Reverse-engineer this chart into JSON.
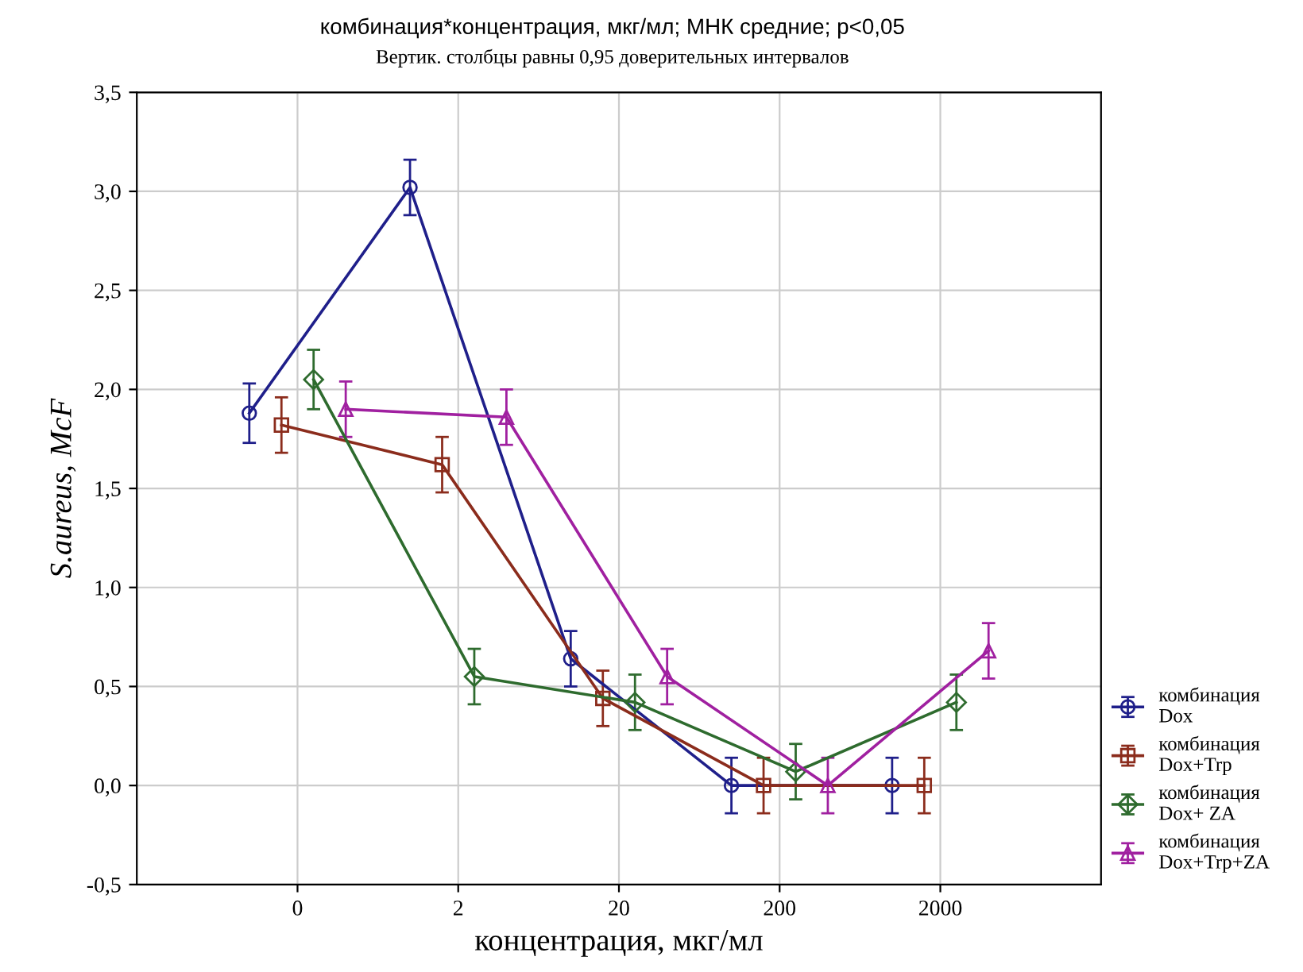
{
  "chart_data": {
    "type": "line",
    "title": "комбинация*концентрация, мкг/мл; МНК средние; p<0,05",
    "subtitle": "Вертик. столбцы равны 0,95 доверительных интервалов",
    "xlabel": "концентрация, мкг/мл",
    "ylabel": "S.aureus, McF",
    "categories": [
      "0",
      "2",
      "20",
      "200",
      "2000"
    ],
    "series": [
      {
        "name": "комбинация\nDox",
        "color": "#1f1f8a",
        "marker": "circle",
        "values": [
          1.88,
          3.02,
          0.64,
          0.0,
          0.0
        ],
        "errors": [
          0.15,
          0.14,
          0.14,
          0.14,
          0.14
        ]
      },
      {
        "name": "комбинация\nDox+Trp",
        "color": "#8b2c1c",
        "marker": "square",
        "values": [
          1.82,
          1.62,
          0.44,
          0.0,
          0.0
        ],
        "errors": [
          0.14,
          0.14,
          0.14,
          0.14,
          0.14
        ]
      },
      {
        "name": "комбинация\nDox+ ZA",
        "color": "#2e6b2e",
        "marker": "diamond",
        "values": [
          2.05,
          0.55,
          0.42,
          0.07,
          0.42
        ],
        "errors": [
          0.15,
          0.14,
          0.14,
          0.14,
          0.14
        ]
      },
      {
        "name": "комбинация\nDox+Trp+ZA",
        "color": "#a020a0",
        "marker": "triangle",
        "values": [
          1.9,
          1.86,
          0.55,
          0.0,
          0.68
        ],
        "errors": [
          0.14,
          0.14,
          0.14,
          0.14,
          0.14
        ]
      }
    ],
    "ylim": [
      -0.5,
      3.5
    ],
    "yticks": [
      {
        "value": -0.5,
        "label": "-0,5"
      },
      {
        "value": 0,
        "label": "0,0"
      },
      {
        "value": 0.5,
        "label": "0,5"
      },
      {
        "value": 1,
        "label": "1,0"
      },
      {
        "value": 1.5,
        "label": "1,5"
      },
      {
        "value": 2,
        "label": "2,0"
      },
      {
        "value": 2.5,
        "label": "2,5"
      },
      {
        "value": 3,
        "label": "3,0"
      },
      {
        "value": 3.5,
        "label": "3,5"
      }
    ],
    "grid": true,
    "legend": "bottom right"
  }
}
